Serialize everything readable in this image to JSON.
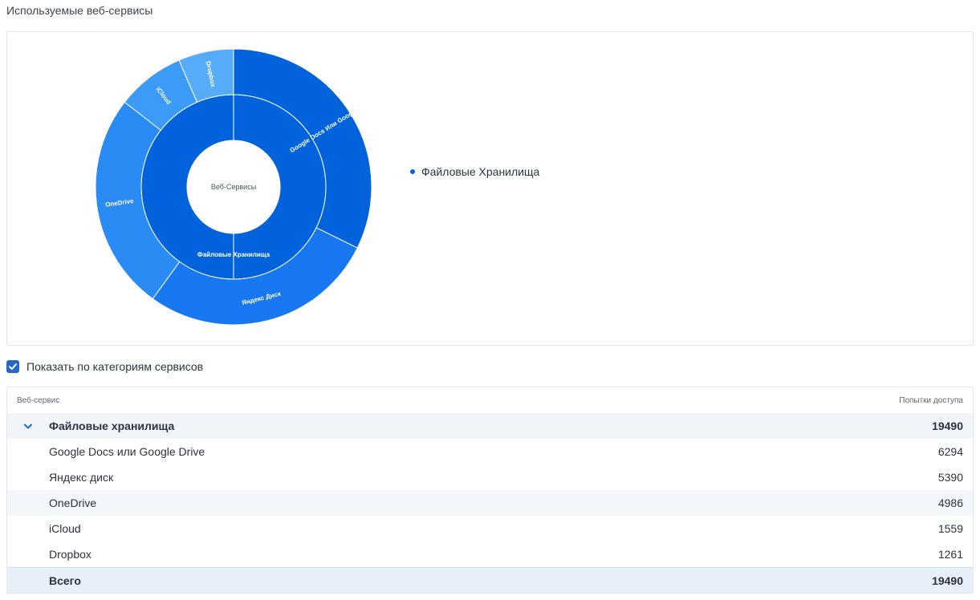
{
  "section": {
    "title": "Используемые веб-сервисы"
  },
  "chart_data": {
    "type": "sunburst",
    "center_label": "Веб-Сервисы",
    "inner_ring": [
      {
        "label": "Файловые Хранилища",
        "value": 19490,
        "color": "#0063dc"
      }
    ],
    "outer_ring": [
      {
        "label": "Google Docs Или Google Drive",
        "value": 6294,
        "color": "#0063dc"
      },
      {
        "label": "Яндекс Диск",
        "value": 5390,
        "color": "#1778f2"
      },
      {
        "label": "OneDrive",
        "value": 4986,
        "color": "#2b8bf5"
      },
      {
        "label": "iCloud",
        "value": 1559,
        "color": "#3d9bf8"
      },
      {
        "label": "Dropbox",
        "value": 1261,
        "color": "#57acfa"
      }
    ],
    "legend": [
      "Файловые Хранилища"
    ],
    "legend_color": "#0063dc"
  },
  "checkbox": {
    "label": "Показать по категориям сервисов",
    "checked": true
  },
  "table": {
    "header": {
      "service": "Веб-сервис",
      "attempts": "Попытки доступа"
    },
    "group": {
      "name": "Файловые хранилища",
      "value": "19490"
    },
    "rows": [
      {
        "name": "Google Docs или Google Drive",
        "value": "6294"
      },
      {
        "name": "Яндекс диск",
        "value": "5390"
      },
      {
        "name": "OneDrive",
        "value": "4986"
      },
      {
        "name": "iCloud",
        "value": "1559"
      },
      {
        "name": "Dropbox",
        "value": "1261"
      }
    ],
    "total": {
      "name": "Всего",
      "value": "19490"
    }
  }
}
